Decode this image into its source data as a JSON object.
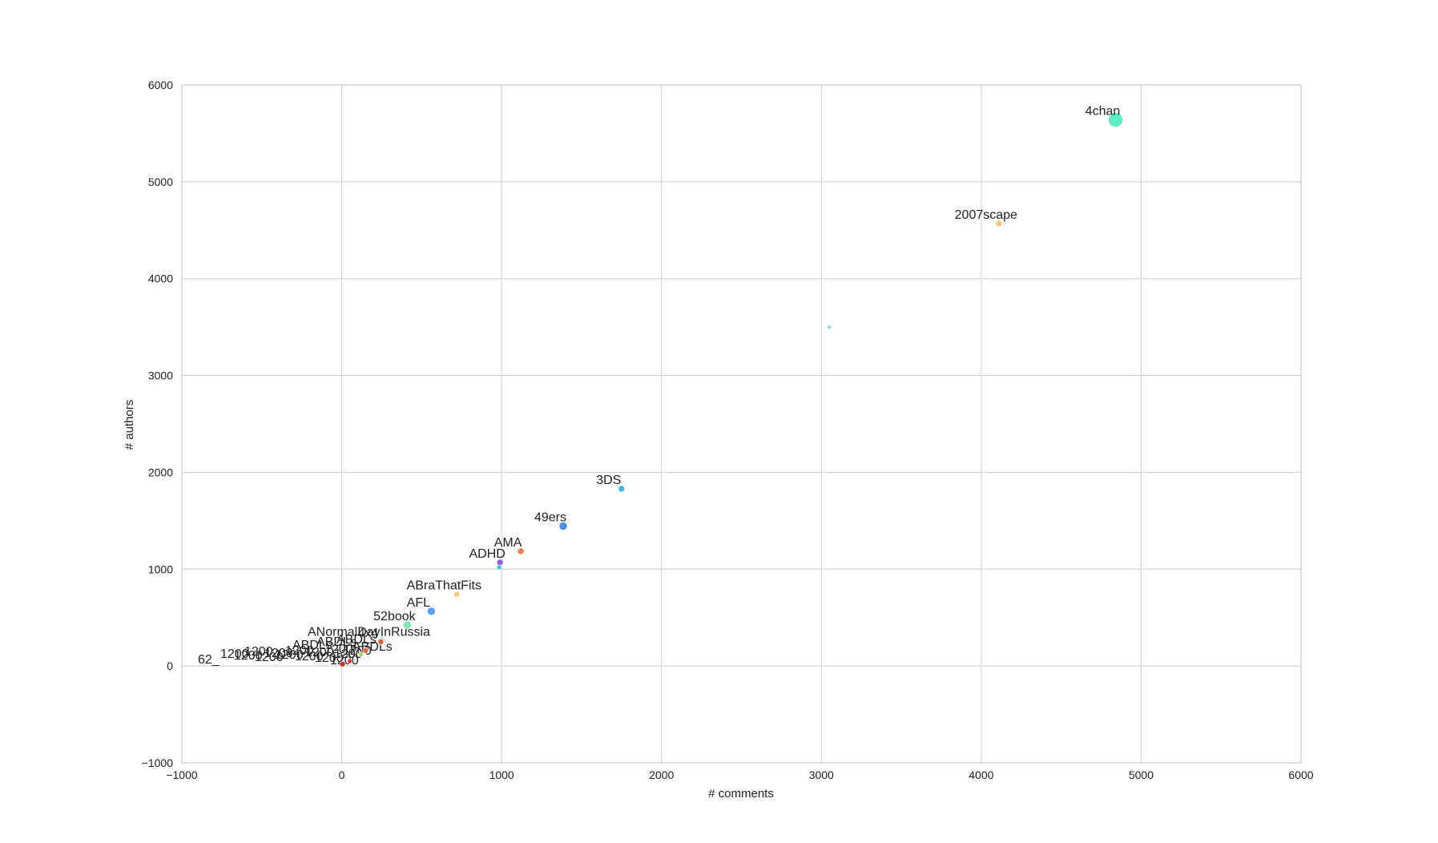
{
  "chart_data": {
    "type": "scatter",
    "title": "",
    "xlabel": "# comments",
    "ylabel": "# authors",
    "xlim": [
      -1000,
      6000
    ],
    "ylim": [
      -1000,
      6000
    ],
    "xticks": [
      -1000,
      0,
      1000,
      2000,
      3000,
      4000,
      5000,
      6000
    ],
    "yticks": [
      -1000,
      0,
      1000,
      2000,
      3000,
      4000,
      5000,
      6000
    ],
    "xtick_labels": [
      "−1000",
      "0",
      "1000",
      "2000",
      "3000",
      "4000",
      "5000",
      "6000"
    ],
    "ytick_labels": [
      "−1000",
      "0",
      "1000",
      "2000",
      "3000",
      "4000",
      "5000",
      "6000"
    ],
    "grid": true,
    "points": [
      {
        "label": "4chan",
        "x": 4840,
        "y": 5640,
        "size": 9,
        "color": "#4ee8c0"
      },
      {
        "label": "2007scape",
        "x": 4110,
        "y": 4570,
        "size": 4,
        "color": "#f7c06a"
      },
      {
        "label": "",
        "x": 3050,
        "y": 3500,
        "size": 2.5,
        "color": "#7dd8f0"
      },
      {
        "label": "3DS",
        "x": 1750,
        "y": 1830,
        "size": 4,
        "color": "#22b4e4"
      },
      {
        "label": "49ers",
        "x": 1385,
        "y": 1445,
        "size": 5,
        "color": "#3a82ee"
      },
      {
        "label": "AMA",
        "x": 1120,
        "y": 1185,
        "size": 4,
        "color": "#f07050"
      },
      {
        "label": "ADHD",
        "x": 990,
        "y": 1070,
        "size": 4,
        "color": "#8a50e0"
      },
      {
        "label": "",
        "x": 985,
        "y": 1020,
        "size": 3,
        "color": "#20c0d8"
      },
      {
        "label": "ABraThatFits",
        "x": 720,
        "y": 740,
        "size": 3.5,
        "color": "#f7c06a"
      },
      {
        "label": "AFL",
        "x": 560,
        "y": 565,
        "size": 5,
        "color": "#4a96f2"
      },
      {
        "label": "52book",
        "x": 410,
        "y": 425,
        "size": 5,
        "color": "#6ee6a8"
      },
      {
        "label": "ANormalDayInRussia",
        "x": 250,
        "y": 260,
        "size": 5,
        "color": "#a8ecd0"
      },
      {
        "label": "4x4",
        "x": 245,
        "y": 250,
        "size": 3.5,
        "color": "#e05030"
      },
      {
        "label": "",
        "x": 150,
        "y": 160,
        "size": 3.5,
        "color": "#f06838"
      },
      {
        "label": "",
        "x": 120,
        "y": 120,
        "size": 3,
        "color": "#b8d870"
      },
      {
        "label": "",
        "x": 50,
        "y": 50,
        "size": 3,
        "color": "#e03030"
      },
      {
        "label": "",
        "x": 5,
        "y": 20,
        "size": 3.5,
        "color": "#d02020"
      }
    ],
    "cluster_labels": [
      "62_",
      "1200",
      "ABDLs"
    ]
  }
}
